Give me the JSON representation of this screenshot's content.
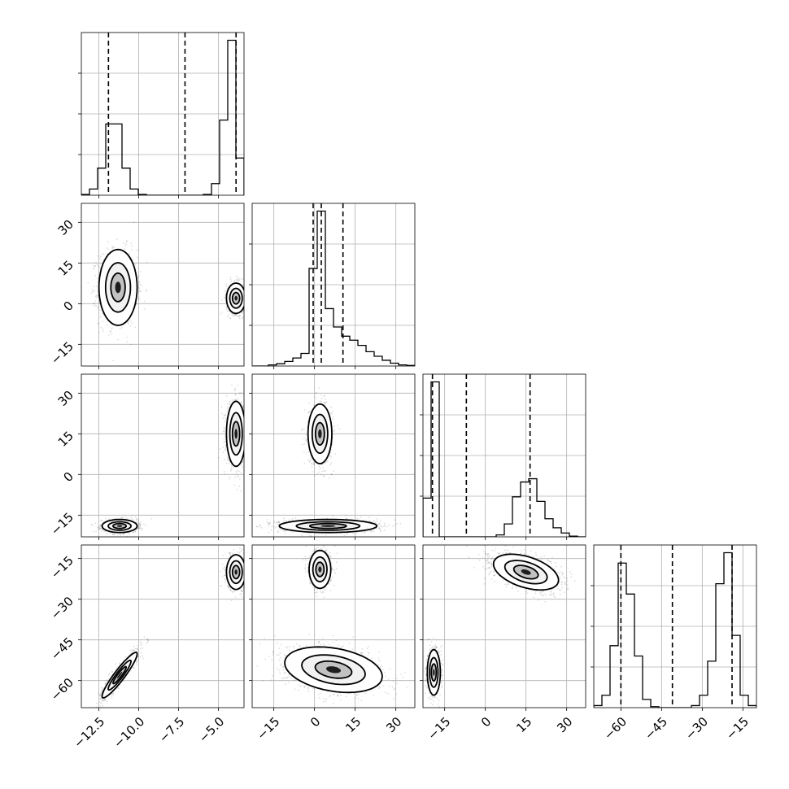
{
  "chart_data": {
    "type": "corner",
    "grid": true,
    "variables": [
      {
        "ticks": [
          -12.5,
          -10.0,
          -7.5,
          -5.0
        ],
        "tick_labels": [
          "−12.5",
          "−10.0",
          "−7.5",
          "−5.0"
        ],
        "range": [
          -13.6,
          -3.4
        ],
        "quantiles": [
          -11.9,
          -7.1,
          -3.9
        ],
        "histogram": {
          "edges": [
            -13.6,
            -13.09,
            -12.58,
            -12.07,
            -11.56,
            -11.05,
            -10.54,
            -10.03,
            -9.52,
            -9.01,
            -8.5,
            -7.99,
            -7.48,
            -6.97,
            -6.46,
            -5.95,
            -5.44,
            -4.93,
            -4.42,
            -3.91,
            -3.4
          ],
          "counts": [
            1,
            8,
            35,
            92,
            92,
            35,
            8,
            1,
            0,
            0,
            0,
            0,
            0,
            0,
            0,
            1,
            15,
            97,
            200,
            48
          ]
        }
      },
      {
        "ticks": [
          -15,
          0,
          15,
          30
        ],
        "tick_labels": [
          "−15",
          "0",
          "15",
          "30"
        ],
        "range": [
          -23,
          37
        ],
        "quantiles": [
          -0.5,
          2.5,
          10.5
        ],
        "histogram": {
          "edges": [
            -23,
            -20,
            -17,
            -14,
            -11,
            -8,
            -5,
            -2,
            1,
            4,
            7,
            10,
            13,
            16,
            19,
            22,
            25,
            28,
            31,
            34,
            37
          ],
          "counts": [
            0,
            0,
            2,
            4,
            8,
            14,
            22,
            170,
            270,
            100,
            68,
            52,
            45,
            36,
            25,
            17,
            10,
            5,
            2,
            1
          ]
        }
      },
      {
        "ticks": [
          -15,
          0,
          15,
          30
        ],
        "tick_labels": [
          "−15",
          "0",
          "15",
          "30"
        ],
        "range": [
          -23,
          37
        ],
        "quantiles": [
          -19.5,
          -7,
          16.5
        ],
        "histogram": {
          "edges": [
            -23,
            -20,
            -17,
            -14,
            -11,
            -8,
            -5,
            -2,
            1,
            4,
            7,
            10,
            13,
            16,
            19,
            22,
            25,
            28,
            31,
            34,
            37
          ],
          "counts": [
            60,
            240,
            0,
            0,
            0,
            0,
            0,
            0,
            0,
            3,
            20,
            62,
            85,
            90,
            55,
            28,
            14,
            6,
            1,
            0
          ]
        }
      },
      {
        "ticks": [
          -60,
          -45,
          -30,
          -15
        ],
        "tick_labels": [
          "−60",
          "−45",
          "−30",
          "−15"
        ],
        "range": [
          -70,
          -10
        ],
        "quantiles": [
          -60,
          -41,
          -19
        ],
        "histogram": {
          "edges": [
            -70,
            -67,
            -64,
            -61,
            -58,
            -55,
            -52,
            -49,
            -46,
            -43,
            -40,
            -37,
            -34,
            -31,
            -28,
            -25,
            -22,
            -19,
            -16,
            -13,
            -10
          ],
          "counts": [
            2,
            12,
            60,
            140,
            110,
            50,
            8,
            1,
            0,
            0,
            0,
            0,
            2,
            12,
            45,
            120,
            150,
            70,
            12,
            2
          ]
        }
      }
    ],
    "scatter_clusters": [
      {
        "row": 1,
        "col": 0,
        "clusters": [
          {
            "cx": -11.3,
            "cy": 6,
            "sx": 0.6,
            "sy": 7,
            "n": 700
          },
          {
            "cx": -3.9,
            "cy": 2,
            "sx": 0.3,
            "sy": 2.8,
            "n": 450
          }
        ]
      },
      {
        "row": 2,
        "col": 0,
        "clusters": [
          {
            "cx": -11.2,
            "cy": -19,
            "sx": 0.55,
            "sy": 1.2,
            "n": 550
          },
          {
            "cx": -3.9,
            "cy": 15,
            "sx": 0.3,
            "sy": 6,
            "n": 500
          }
        ]
      },
      {
        "row": 2,
        "col": 1,
        "clusters": [
          {
            "cx": 2,
            "cy": 15,
            "sx": 2.2,
            "sy": 5.5,
            "n": 500
          },
          {
            "cx": 5,
            "cy": -19,
            "sx": 9,
            "sy": 1.2,
            "n": 700
          }
        ]
      },
      {
        "row": 3,
        "col": 0,
        "clusters": [
          {
            "cx": -11.2,
            "cy": -58,
            "sx": 0.55,
            "sy": 4.2,
            "rho": 0.93,
            "n": 650
          },
          {
            "cx": -3.9,
            "cy": -20,
            "sx": 0.3,
            "sy": 3.2,
            "n": 450
          }
        ]
      },
      {
        "row": 3,
        "col": 1,
        "clusters": [
          {
            "cx": 2,
            "cy": -19,
            "sx": 2,
            "sy": 3.5,
            "n": 450
          },
          {
            "cx": 7,
            "cy": -56,
            "sx": 9,
            "sy": 4.2,
            "rho": -0.3,
            "n": 750
          }
        ]
      },
      {
        "row": 3,
        "col": 2,
        "clusters": [
          {
            "cx": -19,
            "cy": -57,
            "sx": 1.2,
            "sy": 4.2,
            "n": 500
          },
          {
            "cx": 15,
            "cy": -20,
            "sx": 6,
            "sy": 3.3,
            "rho": -0.45,
            "n": 800
          }
        ]
      }
    ]
  }
}
